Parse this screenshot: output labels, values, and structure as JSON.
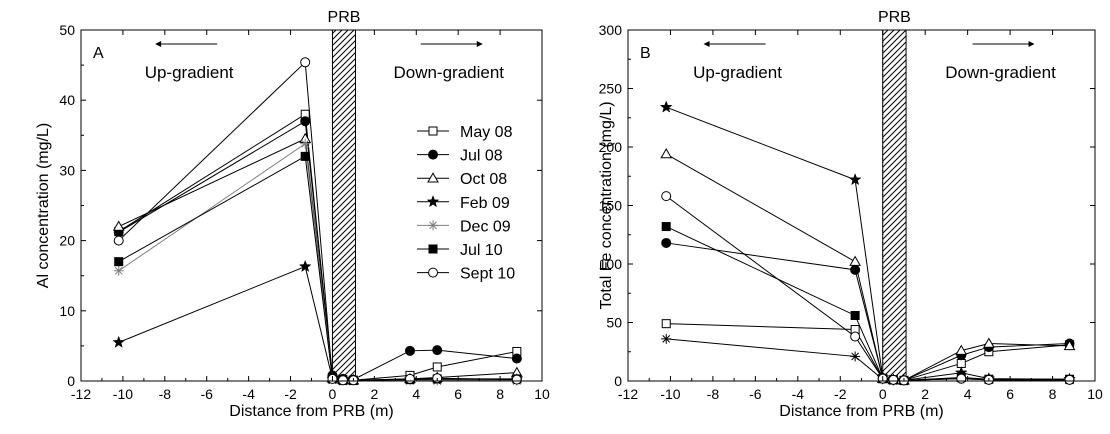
{
  "chart_data": [
    {
      "type": "line",
      "panel_label": "A",
      "xlabel": "Distance from PRB (m)",
      "ylabel": "Al concentration (mg/L)",
      "xlim": [
        -12,
        10
      ],
      "ylim": [
        0,
        50
      ],
      "xticks": [
        -12,
        -10,
        -8,
        -6,
        -4,
        -2,
        0,
        2,
        4,
        6,
        8,
        10
      ],
      "yticks": [
        0,
        10,
        20,
        30,
        40,
        50
      ],
      "barrier": {
        "label": "PRB",
        "from": 0,
        "to": 1.1
      },
      "annotations": {
        "left": "Up-gradient",
        "right": "Down-gradient"
      },
      "legend": "inside-right",
      "series": [
        {
          "name": "May 08",
          "marker": "square-open",
          "color": "#000000",
          "points": [
            [
              -10.2,
              21.3
            ],
            [
              -1.3,
              38.0
            ],
            [
              0,
              0.5
            ],
            [
              0.5,
              0.2
            ],
            [
              1.0,
              0.1
            ],
            [
              3.7,
              0.8
            ],
            [
              5.0,
              2.0
            ],
            [
              8.8,
              4.2
            ]
          ]
        },
        {
          "name": "Jul 08",
          "marker": "circle-filled",
          "color": "#000000",
          "points": [
            [
              -10.2,
              21.2
            ],
            [
              -1.3,
              37.0
            ],
            [
              0,
              0.8
            ],
            [
              0.5,
              0.3
            ],
            [
              1.0,
              0.2
            ],
            [
              3.7,
              4.3
            ],
            [
              5.0,
              4.4
            ],
            [
              8.8,
              3.2
            ]
          ]
        },
        {
          "name": "Oct 08",
          "marker": "triangle-open",
          "color": "#000000",
          "points": [
            [
              -10.2,
              22.0
            ],
            [
              -1.3,
              34.5
            ],
            [
              0,
              0.4
            ],
            [
              0.5,
              0.2
            ],
            [
              1.0,
              0.1
            ],
            [
              3.7,
              0.3
            ],
            [
              5.0,
              0.5
            ],
            [
              8.8,
              1.2
            ]
          ]
        },
        {
          "name": "Feb 09",
          "marker": "star-filled",
          "color": "#000000",
          "points": [
            [
              -10.2,
              5.5
            ],
            [
              -1.3,
              16.3
            ],
            [
              0,
              0.3
            ],
            [
              0.5,
              0.1
            ],
            [
              1.0,
              0.1
            ],
            [
              3.7,
              0.2
            ],
            [
              5.0,
              0.2
            ],
            [
              8.8,
              0.2
            ]
          ]
        },
        {
          "name": "Dec 09",
          "marker": "asterisk",
          "color": "#7f7f7f",
          "points": [
            [
              -10.2,
              15.7
            ],
            [
              -1.3,
              33.8
            ],
            [
              0,
              0.3
            ],
            [
              0.5,
              0.1
            ],
            [
              1.0,
              0.1
            ],
            [
              3.7,
              0.1
            ],
            [
              5.0,
              0.1
            ],
            [
              8.8,
              0.1
            ]
          ]
        },
        {
          "name": "Jul 10",
          "marker": "square-filled",
          "color": "#000000",
          "points": [
            [
              -10.2,
              17.0
            ],
            [
              -1.3,
              32.0
            ],
            [
              0,
              0.3
            ],
            [
              0.5,
              0.1
            ],
            [
              1.0,
              0.1
            ],
            [
              3.7,
              0.2
            ],
            [
              5.0,
              0.3
            ],
            [
              8.8,
              0.3
            ]
          ]
        },
        {
          "name": "Sept 10",
          "marker": "circle-open",
          "color": "#000000",
          "points": [
            [
              -10.2,
              20.0
            ],
            [
              -1.3,
              45.4
            ],
            [
              0,
              0.3
            ],
            [
              0.5,
              0.1
            ],
            [
              1.0,
              0.1
            ],
            [
              3.7,
              0.3
            ],
            [
              5.0,
              0.4
            ],
            [
              8.8,
              0.2
            ]
          ]
        }
      ]
    },
    {
      "type": "line",
      "panel_label": "B",
      "xlabel": "Distance from PRB (m)",
      "ylabel": "Total Fe concentration (mg/L)",
      "xlim": [
        -12,
        10
      ],
      "ylim": [
        0,
        300
      ],
      "xticks": [
        -12,
        -10,
        -8,
        -6,
        -4,
        -2,
        0,
        2,
        4,
        6,
        8,
        10
      ],
      "yticks": [
        0,
        50,
        100,
        150,
        200,
        250,
        300
      ],
      "barrier": {
        "label": "PRB",
        "from": 0,
        "to": 1.1
      },
      "annotations": {
        "left": "Up-gradient",
        "right": "Down-gradient"
      },
      "series": [
        {
          "name": "May 08",
          "marker": "square-open",
          "color": "#000000",
          "points": [
            [
              -10.2,
              49.0
            ],
            [
              -1.3,
              44.0
            ],
            [
              0,
              2.0
            ],
            [
              0.5,
              1.0
            ],
            [
              1.0,
              0.5
            ],
            [
              3.7,
              15.0
            ],
            [
              5.0,
              25.0
            ],
            [
              8.8,
              31.0
            ]
          ]
        },
        {
          "name": "Jul 08",
          "marker": "circle-filled",
          "color": "#000000",
          "points": [
            [
              -10.2,
              118.0
            ],
            [
              -1.3,
              95.0
            ],
            [
              0,
              2.5
            ],
            [
              0.5,
              1.0
            ],
            [
              1.0,
              0.5
            ],
            [
              3.7,
              22.0
            ],
            [
              5.0,
              29.0
            ],
            [
              8.8,
              32.0
            ]
          ]
        },
        {
          "name": "Oct 08",
          "marker": "triangle-open",
          "color": "#000000",
          "points": [
            [
              -10.2,
              194.0
            ],
            [
              -1.3,
              102.0
            ],
            [
              0,
              2.0
            ],
            [
              0.5,
              1.0
            ],
            [
              1.0,
              0.5
            ],
            [
              3.7,
              26.0
            ],
            [
              5.0,
              32.0
            ],
            [
              8.8,
              30.0
            ]
          ]
        },
        {
          "name": "Feb 09",
          "marker": "star-filled",
          "color": "#000000",
          "points": [
            [
              -10.2,
              234.0
            ],
            [
              -1.3,
              172.0
            ],
            [
              0,
              3.0
            ],
            [
              0.5,
              1.0
            ],
            [
              1.0,
              0.5
            ],
            [
              3.7,
              7.0
            ],
            [
              5.0,
              2.0
            ],
            [
              8.8,
              1.5
            ]
          ]
        },
        {
          "name": "Dec 09",
          "marker": "asterisk",
          "color": "#000000",
          "points": [
            [
              -10.2,
              36.0
            ],
            [
              -1.3,
              21.0
            ],
            [
              0,
              1.5
            ],
            [
              0.5,
              0.5
            ],
            [
              1.0,
              0.5
            ],
            [
              3.7,
              2.0
            ],
            [
              5.0,
              1.0
            ],
            [
              8.8,
              1.0
            ]
          ]
        },
        {
          "name": "Jul 10",
          "marker": "square-filled",
          "color": "#000000",
          "points": [
            [
              -10.2,
              132.0
            ],
            [
              -1.3,
              56.0
            ],
            [
              0,
              2.0
            ],
            [
              0.5,
              1.0
            ],
            [
              1.0,
              0.5
            ],
            [
              3.7,
              3.0
            ],
            [
              5.0,
              1.5
            ],
            [
              8.8,
              1.5
            ]
          ]
        },
        {
          "name": "Sept 10",
          "marker": "circle-open",
          "color": "#000000",
          "points": [
            [
              -10.2,
              158.0
            ],
            [
              -1.3,
              38.0
            ],
            [
              0,
              2.0
            ],
            [
              0.5,
              1.0
            ],
            [
              1.0,
              0.5
            ],
            [
              3.7,
              2.0
            ],
            [
              5.0,
              1.0
            ],
            [
              8.8,
              1.0
            ]
          ]
        }
      ]
    }
  ]
}
